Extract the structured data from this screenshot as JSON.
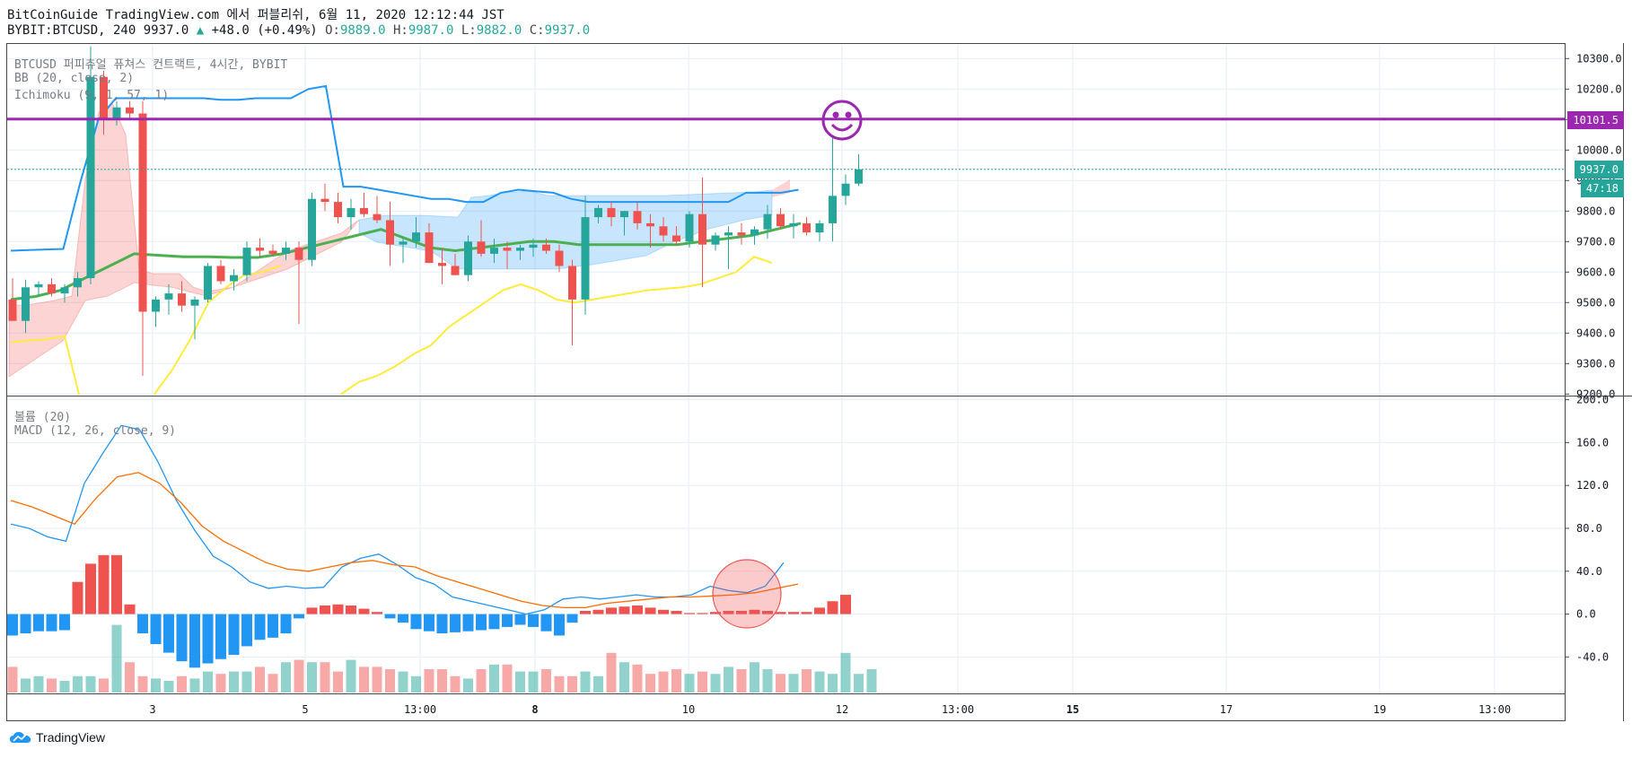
{
  "header": {
    "line1": "BitCoinGuide TradingView.com 에서 퍼블리쉬, 6월 11, 2020 12:12:44 JST",
    "symbol": "BYBIT:BTCUSD, 240",
    "last": "9937.0",
    "change": "+48.0 (+0.49%)",
    "o_label": "O:",
    "o_value": "9889.0",
    "h_label": "H:",
    "h_value": "9987.0",
    "l_label": "L:",
    "l_value": "9882.0",
    "c_label": "C:",
    "c_value": "9937.0"
  },
  "indicators_top": {
    "title": "BTCUSD 퍼피츄얼 퓨쳐스 컨트랙트, 4시간, BYBIT",
    "bb": "BB (20, close, 2)",
    "ichimoku": "Ichimoku (9, 1, 57, 1)"
  },
  "indicators_bottom": {
    "volume": "볼륨 (20)",
    "macd": "MACD (12, 26, close, 9)"
  },
  "price_tags": {
    "horizontal_line": "10101.5",
    "last_price": "9937.0",
    "countdown": "47:18"
  },
  "footer": {
    "brand": "TradingView"
  },
  "colors": {
    "up": "#26a69a",
    "down": "#ef5350",
    "bb": "#2196f3",
    "ma": "#4caf50",
    "span": "#ffeb3b",
    "hline": "#9c27b0",
    "macd": "#2196f3",
    "signal": "#ff6d00"
  },
  "chart_data": [
    {
      "type": "candlestick",
      "title": "BTCUSD 퍼피츄얼 퓨쳐스 컨트랙트, 4시간, BYBIT",
      "x_ticks": [
        "3",
        "5",
        "13:00",
        "8",
        "10",
        "12",
        "13:00",
        "15",
        "17",
        "19",
        "13:00"
      ],
      "y_ticks": [
        9200,
        9300,
        9400,
        9500,
        9600,
        9700,
        9800,
        9900,
        10000,
        10100,
        10200,
        10300
      ],
      "ylim": [
        9195,
        10345
      ],
      "horizontal_line": 10101.5,
      "last_price": 9937.0,
      "candles": [
        [
          9510,
          9580,
          9440,
          9440
        ],
        [
          9440,
          9575,
          9400,
          9550
        ],
        [
          9550,
          9570,
          9520,
          9560
        ],
        [
          9560,
          9580,
          9520,
          9530
        ],
        [
          9530,
          9560,
          9500,
          9550
        ],
        [
          9550,
          9600,
          9520,
          9580
        ],
        [
          9580,
          10340,
          9560,
          10240
        ],
        [
          10240,
          10260,
          10050,
          10100
        ],
        [
          10100,
          10160,
          10080,
          10140
        ],
        [
          10140,
          10160,
          10100,
          10120
        ],
        [
          10120,
          10160,
          9260,
          9470
        ],
        [
          9470,
          9520,
          9420,
          9510
        ],
        [
          9510,
          9560,
          9460,
          9530
        ],
        [
          9530,
          9570,
          9470,
          9490
        ],
        [
          9490,
          9520,
          9380,
          9510
        ],
        [
          9510,
          9630,
          9500,
          9620
        ],
        [
          9620,
          9640,
          9560,
          9570
        ],
        [
          9570,
          9610,
          9540,
          9590
        ],
        [
          9590,
          9700,
          9570,
          9680
        ],
        [
          9680,
          9710,
          9650,
          9670
        ],
        [
          9670,
          9690,
          9650,
          9660
        ],
        [
          9660,
          9700,
          9640,
          9680
        ],
        [
          9680,
          9700,
          9430,
          9640
        ],
        [
          9640,
          9860,
          9620,
          9840
        ],
        [
          9840,
          9890,
          9800,
          9830
        ],
        [
          9830,
          9860,
          9760,
          9780
        ],
        [
          9780,
          9840,
          9740,
          9810
        ],
        [
          9810,
          9860,
          9780,
          9790
        ],
        [
          9790,
          9850,
          9760,
          9770
        ],
        [
          9770,
          9830,
          9620,
          9690
        ],
        [
          9690,
          9710,
          9630,
          9700
        ],
        [
          9700,
          9780,
          9680,
          9730
        ],
        [
          9730,
          9760,
          9630,
          9630
        ],
        [
          9630,
          9680,
          9560,
          9620
        ],
        [
          9620,
          9660,
          9590,
          9590
        ],
        [
          9590,
          9720,
          9570,
          9700
        ],
        [
          9700,
          9770,
          9650,
          9660
        ],
        [
          9660,
          9710,
          9630,
          9680
        ],
        [
          9680,
          9700,
          9610,
          9670
        ],
        [
          9670,
          9690,
          9640,
          9680
        ],
        [
          9680,
          9710,
          9650,
          9690
        ],
        [
          9690,
          9710,
          9660,
          9670
        ],
        [
          9670,
          9690,
          9600,
          9620
        ],
        [
          9620,
          9640,
          9360,
          9510
        ],
        [
          9510,
          9850,
          9460,
          9780
        ],
        [
          9780,
          9820,
          9760,
          9810
        ],
        [
          9810,
          9830,
          9750,
          9780
        ],
        [
          9780,
          9800,
          9720,
          9800
        ],
        [
          9800,
          9830,
          9740,
          9760
        ],
        [
          9760,
          9790,
          9680,
          9750
        ],
        [
          9750,
          9780,
          9700,
          9720
        ],
        [
          9720,
          9750,
          9690,
          9700
        ],
        [
          9700,
          9800,
          9680,
          9790
        ],
        [
          9790,
          9910,
          9550,
          9690
        ],
        [
          9690,
          9730,
          9670,
          9720
        ],
        [
          9720,
          9750,
          9610,
          9730
        ],
        [
          9730,
          9760,
          9690,
          9720
        ],
        [
          9720,
          9750,
          9690,
          9740
        ],
        [
          9740,
          9820,
          9710,
          9790
        ],
        [
          9790,
          9810,
          9740,
          9750
        ],
        [
          9750,
          9790,
          9710,
          9760
        ],
        [
          9760,
          9780,
          9720,
          9730
        ],
        [
          9730,
          9770,
          9700,
          9760
        ],
        [
          9760,
          10040,
          9700,
          9850
        ],
        [
          9850,
          9920,
          9820,
          9890
        ],
        [
          9890,
          9987,
          9882,
          9937
        ]
      ],
      "bb_upper": [
        9670,
        9672,
        9674,
        9676,
        9900,
        10100,
        10170,
        10170,
        10170,
        10170,
        10170,
        10170,
        10165,
        10165,
        10170,
        10170,
        10170,
        10200,
        10210,
        9880,
        9880,
        9870,
        9860,
        9850,
        9840,
        9840,
        9830,
        9830,
        9860,
        9870,
        9865,
        9860,
        9840,
        9830,
        9830,
        9830,
        9830,
        9830,
        9830,
        9830,
        9830,
        9830,
        9860,
        9860,
        9860,
        9870
      ],
      "bb_mid": [
        9510,
        9520,
        9540,
        9580,
        9620,
        9660,
        9655,
        9650,
        9650,
        9648,
        9648,
        9660,
        9680,
        9700,
        9720,
        9740,
        9710,
        9680,
        9670,
        9680,
        9690,
        9700,
        9700,
        9690,
        9690,
        9690,
        9690,
        9690,
        9700,
        9710,
        9720,
        9740,
        9760
      ],
      "bb_lower": [
        9170,
        9150,
        9130,
        9150,
        9200,
        9240,
        9260,
        9290,
        9330,
        9360,
        9420,
        9460,
        9500,
        9540,
        9560,
        9540,
        9510,
        9500,
        9510,
        9520,
        9530,
        9540,
        9545,
        9550,
        9560,
        9580,
        9600,
        9650,
        9630
      ],
      "span_a": [
        9370,
        9375,
        9380,
        9390,
        9150,
        9000,
        9050,
        9100,
        9200,
        9280,
        9380,
        9500,
        9550,
        9590,
        9600,
        9620
      ],
      "span_b": [
        9300,
        9300,
        9290,
        9150,
        8900,
        8950,
        9000,
        9100,
        9200,
        9300,
        9400,
        9500,
        9560,
        9600
      ]
    },
    {
      "type": "bar",
      "title": "볼륨 (20)",
      "values": [
        22,
        12,
        14,
        12,
        10,
        14,
        14,
        12,
        58,
        26,
        14,
        12,
        10,
        14,
        12,
        18,
        16,
        18,
        18,
        22,
        16,
        26,
        28,
        26,
        26,
        18,
        28,
        22,
        22,
        20,
        18,
        14,
        20,
        20,
        14,
        12,
        20,
        24,
        24,
        18,
        18,
        20,
        14,
        14,
        18,
        14,
        34,
        26,
        24,
        16,
        18,
        20,
        16,
        18,
        16,
        22,
        20,
        26,
        20,
        16,
        16,
        20,
        18,
        16,
        34,
        16,
        20
      ]
    },
    {
      "type": "line",
      "title": "MACD (12, 26, close, 9)",
      "y_ticks": [
        -40.0,
        0.0,
        40.0,
        80.0,
        120.0,
        160.0,
        200.0
      ],
      "ylim": [
        -74,
        203
      ],
      "macd": [
        84,
        80,
        72,
        68,
        122,
        150,
        176,
        172,
        142,
        106,
        78,
        54,
        44,
        30,
        24,
        26,
        24,
        25,
        44,
        52,
        56,
        46,
        34,
        28,
        16,
        12,
        8,
        4,
        0,
        4,
        14,
        16,
        14,
        16,
        18,
        16,
        16,
        18,
        26,
        22,
        20,
        26,
        48
      ],
      "signal": [
        106,
        100,
        92,
        84,
        108,
        128,
        132,
        122,
        104,
        82,
        68,
        58,
        48,
        42,
        40,
        44,
        48,
        50,
        46,
        44,
        36,
        30,
        24,
        18,
        12,
        8,
        6,
        6,
        10,
        12,
        14,
        16,
        16,
        17,
        18,
        20,
        24,
        28
      ],
      "histogram": [
        -20,
        -18,
        -16,
        -16,
        -15,
        30,
        47,
        55,
        55,
        9,
        -18,
        -28,
        -36,
        -44,
        -50,
        -46,
        -42,
        -38,
        -30,
        -24,
        -22,
        -18,
        -4,
        6,
        8,
        9,
        8,
        5,
        2,
        -4,
        -8,
        -14,
        -16,
        -18,
        -17,
        -16,
        -15,
        -14,
        -12,
        -10,
        -12,
        -16,
        -20,
        -8,
        3,
        4,
        6,
        7,
        8,
        6,
        4,
        3,
        1,
        1,
        2,
        3,
        3,
        4,
        3,
        2,
        2,
        2,
        6,
        12,
        18
      ]
    }
  ]
}
